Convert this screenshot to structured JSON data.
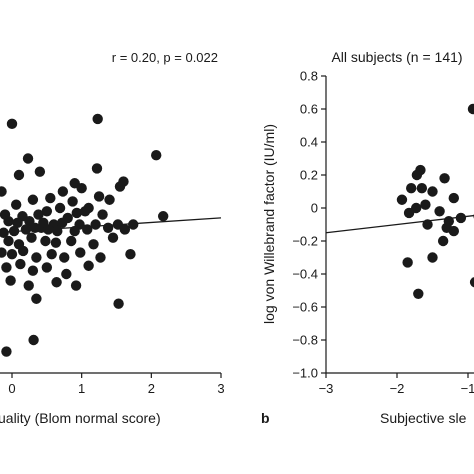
{
  "chart_data": [
    {
      "type": "scatter",
      "panel_label": "",
      "title": "",
      "annotation": "r = 0.20, p = 0.022",
      "xlabel": "uality (Blom normal score)",
      "ylabel": "",
      "xlim": [
        -0.25,
        3
      ],
      "ylim": [
        -1.0,
        0.8
      ],
      "x_ticks": [
        0,
        1,
        2,
        3
      ],
      "x_tick_labels": [
        "0",
        "1",
        "2",
        "3"
      ],
      "fit_line": {
        "x": [
          -0.25,
          3
        ],
        "y": [
          -0.15,
          -0.06
        ]
      },
      "points": [
        {
          "x": 0.0,
          "y": 0.51
        },
        {
          "x": 1.23,
          "y": 0.54
        },
        {
          "x": 2.07,
          "y": 0.32
        },
        {
          "x": 0.23,
          "y": 0.3
        },
        {
          "x": 0.4,
          "y": 0.22
        },
        {
          "x": 1.22,
          "y": 0.24
        },
        {
          "x": 0.1,
          "y": 0.2
        },
        {
          "x": 0.9,
          "y": 0.15
        },
        {
          "x": 1.6,
          "y": 0.16
        },
        {
          "x": 1.55,
          "y": 0.13
        },
        {
          "x": 0.73,
          "y": 0.1
        },
        {
          "x": 1.0,
          "y": 0.12
        },
        {
          "x": 0.3,
          "y": 0.05
        },
        {
          "x": 0.55,
          "y": 0.06
        },
        {
          "x": 0.87,
          "y": 0.04
        },
        {
          "x": 1.25,
          "y": 0.07
        },
        {
          "x": 1.4,
          "y": 0.05
        },
        {
          "x": -0.15,
          "y": 0.1
        },
        {
          "x": 0.06,
          "y": 0.02
        },
        {
          "x": 0.69,
          "y": 0.0
        },
        {
          "x": 1.1,
          "y": 0.0
        },
        {
          "x": 2.17,
          "y": -0.05
        },
        {
          "x": -0.1,
          "y": -0.04
        },
        {
          "x": 0.15,
          "y": -0.05
        },
        {
          "x": 0.38,
          "y": -0.04
        },
        {
          "x": 0.5,
          "y": -0.02
        },
        {
          "x": 0.8,
          "y": -0.06
        },
        {
          "x": 0.93,
          "y": -0.03
        },
        {
          "x": 1.05,
          "y": -0.02
        },
        {
          "x": 1.3,
          "y": -0.04
        },
        {
          "x": -0.05,
          "y": -0.08
        },
        {
          "x": 0.08,
          "y": -0.09
        },
        {
          "x": 0.25,
          "y": -0.08
        },
        {
          "x": 0.45,
          "y": -0.09
        },
        {
          "x": 0.6,
          "y": -0.1
        },
        {
          "x": 0.72,
          "y": -0.09
        },
        {
          "x": 0.97,
          "y": -0.1
        },
        {
          "x": 1.2,
          "y": -0.1
        },
        {
          "x": 1.52,
          "y": -0.1
        },
        {
          "x": 1.74,
          "y": -0.1
        },
        {
          "x": -0.12,
          "y": -0.15
        },
        {
          "x": 0.03,
          "y": -0.14
        },
        {
          "x": 0.2,
          "y": -0.13
        },
        {
          "x": 0.33,
          "y": -0.12
        },
        {
          "x": 0.42,
          "y": -0.12
        },
        {
          "x": 0.52,
          "y": -0.13
        },
        {
          "x": 0.65,
          "y": -0.14
        },
        {
          "x": 0.9,
          "y": -0.14
        },
        {
          "x": 1.08,
          "y": -0.13
        },
        {
          "x": 1.38,
          "y": -0.12
        },
        {
          "x": 1.62,
          "y": -0.13
        },
        {
          "x": -0.05,
          "y": -0.2
        },
        {
          "x": 0.1,
          "y": -0.22
        },
        {
          "x": 0.28,
          "y": -0.18
        },
        {
          "x": 0.48,
          "y": -0.2
        },
        {
          "x": 0.63,
          "y": -0.21
        },
        {
          "x": 0.85,
          "y": -0.2
        },
        {
          "x": 1.17,
          "y": -0.22
        },
        {
          "x": 1.45,
          "y": -0.18
        },
        {
          "x": -0.15,
          "y": -0.27
        },
        {
          "x": 0.0,
          "y": -0.28
        },
        {
          "x": 0.16,
          "y": -0.26
        },
        {
          "x": 0.35,
          "y": -0.3
        },
        {
          "x": 0.57,
          "y": -0.28
        },
        {
          "x": 0.75,
          "y": -0.3
        },
        {
          "x": 0.98,
          "y": -0.27
        },
        {
          "x": 1.27,
          "y": -0.3
        },
        {
          "x": 1.7,
          "y": -0.28
        },
        {
          "x": -0.08,
          "y": -0.36
        },
        {
          "x": 0.12,
          "y": -0.34
        },
        {
          "x": 0.3,
          "y": -0.38
        },
        {
          "x": 0.5,
          "y": -0.36
        },
        {
          "x": 0.78,
          "y": -0.4
        },
        {
          "x": 1.1,
          "y": -0.35
        },
        {
          "x": -0.02,
          "y": -0.44
        },
        {
          "x": 0.24,
          "y": -0.47
        },
        {
          "x": 0.64,
          "y": -0.45
        },
        {
          "x": 0.92,
          "y": -0.47
        },
        {
          "x": 0.35,
          "y": -0.55
        },
        {
          "x": 1.53,
          "y": -0.58
        },
        {
          "x": 0.31,
          "y": -0.8
        },
        {
          "x": -0.08,
          "y": -0.87
        }
      ]
    },
    {
      "type": "scatter",
      "panel_label": "b",
      "title": "All subjects (n = 141)",
      "xlabel": "Subjective sle",
      "ylabel": "log von Willebrand factor (IU/ml)",
      "xlim": [
        -3,
        -0.6
      ],
      "ylim": [
        -1.0,
        0.8
      ],
      "x_ticks": [
        -3,
        -2,
        -1
      ],
      "x_tick_labels": [
        "−3",
        "−2",
        "−1"
      ],
      "y_ticks": [
        0.8,
        0.6,
        0.4,
        0.2,
        0,
        -0.2,
        -0.4,
        -0.6,
        -0.8,
        -1.0
      ],
      "y_tick_labels": [
        "0.8",
        "0.6",
        "0.4",
        "0.2",
        "0",
        "−0.2",
        "−0.4",
        "−0.6",
        "−0.8",
        "−1.0"
      ],
      "fit_line": {
        "x": [
          -3,
          -0.6
        ],
        "y": [
          -0.15,
          -0.03
        ]
      },
      "points": [
        {
          "x": -0.93,
          "y": 0.6
        },
        {
          "x": -0.83,
          "y": 0.32
        },
        {
          "x": -0.78,
          "y": 0.28
        },
        {
          "x": -1.67,
          "y": 0.23
        },
        {
          "x": -1.72,
          "y": 0.2
        },
        {
          "x": -1.33,
          "y": 0.18
        },
        {
          "x": -0.75,
          "y": 0.18
        },
        {
          "x": -1.8,
          "y": 0.12
        },
        {
          "x": -1.65,
          "y": 0.12
        },
        {
          "x": -1.5,
          "y": 0.1
        },
        {
          "x": -1.93,
          "y": 0.05
        },
        {
          "x": -1.2,
          "y": 0.06
        },
        {
          "x": -0.8,
          "y": 0.1
        },
        {
          "x": -0.8,
          "y": 0.04
        },
        {
          "x": -1.73,
          "y": 0.0
        },
        {
          "x": -1.6,
          "y": 0.02
        },
        {
          "x": -1.83,
          "y": -0.03
        },
        {
          "x": -1.4,
          "y": -0.02
        },
        {
          "x": -0.85,
          "y": -0.05
        },
        {
          "x": -1.27,
          "y": -0.08
        },
        {
          "x": -1.1,
          "y": -0.06
        },
        {
          "x": -1.57,
          "y": -0.1
        },
        {
          "x": -1.3,
          "y": -0.12
        },
        {
          "x": -1.2,
          "y": -0.14
        },
        {
          "x": -0.8,
          "y": -0.15
        },
        {
          "x": -1.35,
          "y": -0.2
        },
        {
          "x": -0.78,
          "y": -0.24
        },
        {
          "x": -1.85,
          "y": -0.33
        },
        {
          "x": -1.5,
          "y": -0.3
        },
        {
          "x": -0.9,
          "y": -0.45
        },
        {
          "x": -1.7,
          "y": -0.52
        }
      ]
    }
  ]
}
